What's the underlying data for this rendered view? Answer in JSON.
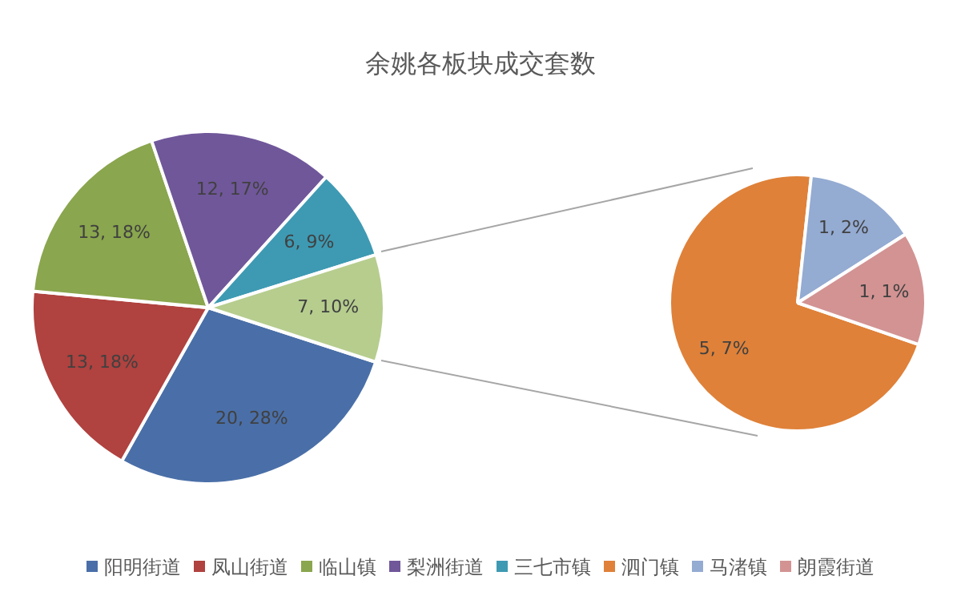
{
  "chart_data": [
    {
      "type": "pie",
      "title": "余姚各板块成交套数",
      "categories": [
        "阳明街道",
        "凤山街道",
        "临山镇",
        "梨洲街道",
        "三七市镇",
        null
      ],
      "values": [
        20,
        13,
        13,
        12,
        6,
        7
      ],
      "colors": [
        "#4a6fa8",
        "#b0423f",
        "#8aa64e",
        "#70579a",
        "#3e9ab3",
        "#b6cd8e"
      ],
      "value_labels": [
        "20, 28%",
        "13, 18%",
        "13, 18%",
        "12, 17%",
        "6, 9%",
        "7, 10%"
      ],
      "legend": "bottom"
    },
    {
      "type": "pie",
      "categories": [
        "泗门镇",
        "马渚镇",
        "朗霞街道"
      ],
      "values": [
        5,
        1,
        1
      ],
      "colors": [
        "#df8139",
        "#94abd2",
        "#d39393"
      ],
      "value_labels": [
        "5, 7%",
        "1, 2%",
        "1, 1%"
      ],
      "legend": "bottom"
    }
  ]
}
